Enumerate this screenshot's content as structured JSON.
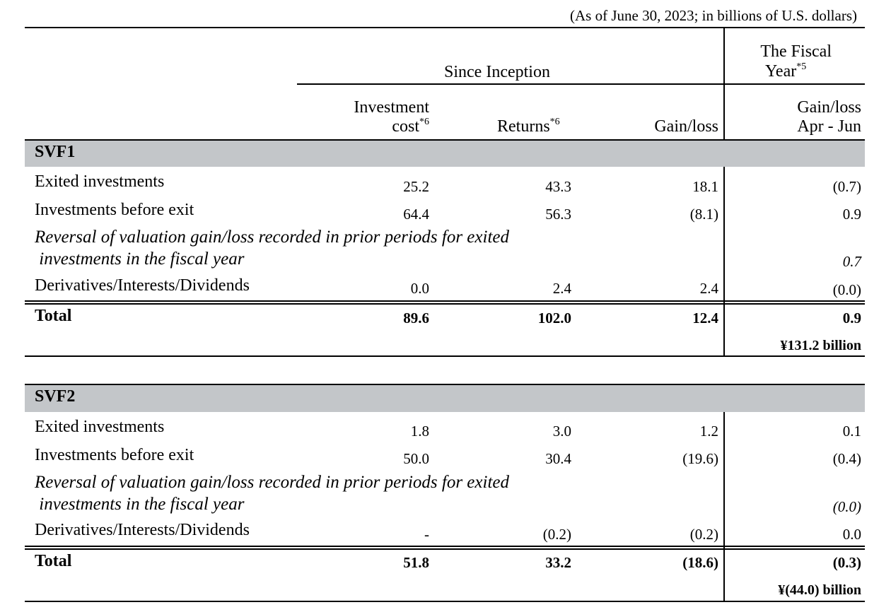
{
  "note": "(As of June 30, 2023; in billions of U.S. dollars)",
  "header": {
    "since_inception": "Since Inception",
    "fiscal_year": "The Fiscal",
    "fiscal_year_2": "Year",
    "fiscal_year_sup": "*5",
    "col_investment_1": "Investment",
    "col_investment_2": "cost",
    "col_investment_sup": "*6",
    "col_returns": "Returns",
    "col_returns_sup": "*6",
    "col_gainloss": "Gain/loss",
    "col_fy_1": "Gain/loss",
    "col_fy_2": "Apr - Jun"
  },
  "sections": [
    {
      "name": "SVF1",
      "rows": [
        {
          "label": "Exited investments",
          "v1": "25.2",
          "v2": "43.3",
          "v3": "18.1",
          "v4": "(0.7)"
        },
        {
          "label": "Investments before exit",
          "v1": "64.4",
          "v2": "56.3",
          "v3": "(8.1)",
          "v4": "0.9"
        },
        {
          "label_1": "Reversal of valuation gain/loss recorded in prior periods for exited",
          "label_2": " investments in the fiscal year",
          "v4": "0.7"
        },
        {
          "label": "Derivatives/Interests/Dividends",
          "v1": "0.0",
          "v2": "2.4",
          "v3": "2.4",
          "v4": "(0.0)"
        }
      ],
      "total": {
        "label": "Total",
        "v1": "89.6",
        "v2": "102.0",
        "v3": "12.4",
        "v4": "0.9",
        "yen": "¥131.2 billion"
      }
    },
    {
      "name": "SVF2",
      "rows": [
        {
          "label": "Exited investments",
          "v1": "1.8",
          "v2": "3.0",
          "v3": "1.2",
          "v4": "0.1"
        },
        {
          "label": "Investments before exit",
          "v1": "50.0",
          "v2": "30.4",
          "v3": "(19.6)",
          "v4": "(0.4)"
        },
        {
          "label_1": "Reversal of valuation gain/loss recorded in prior periods for exited",
          "label_2": " investments in the fiscal year",
          "v4": "(0.0)"
        },
        {
          "label": "Derivatives/Interests/Dividends",
          "v1": "-",
          "v2": "(0.2)",
          "v3": "(0.2)",
          "v4": "0.0"
        }
      ],
      "total": {
        "label": "Total",
        "v1": "51.8",
        "v2": "33.2",
        "v3": "(18.6)",
        "v4": "(0.3)",
        "yen": "¥(44.0) billion"
      }
    }
  ]
}
